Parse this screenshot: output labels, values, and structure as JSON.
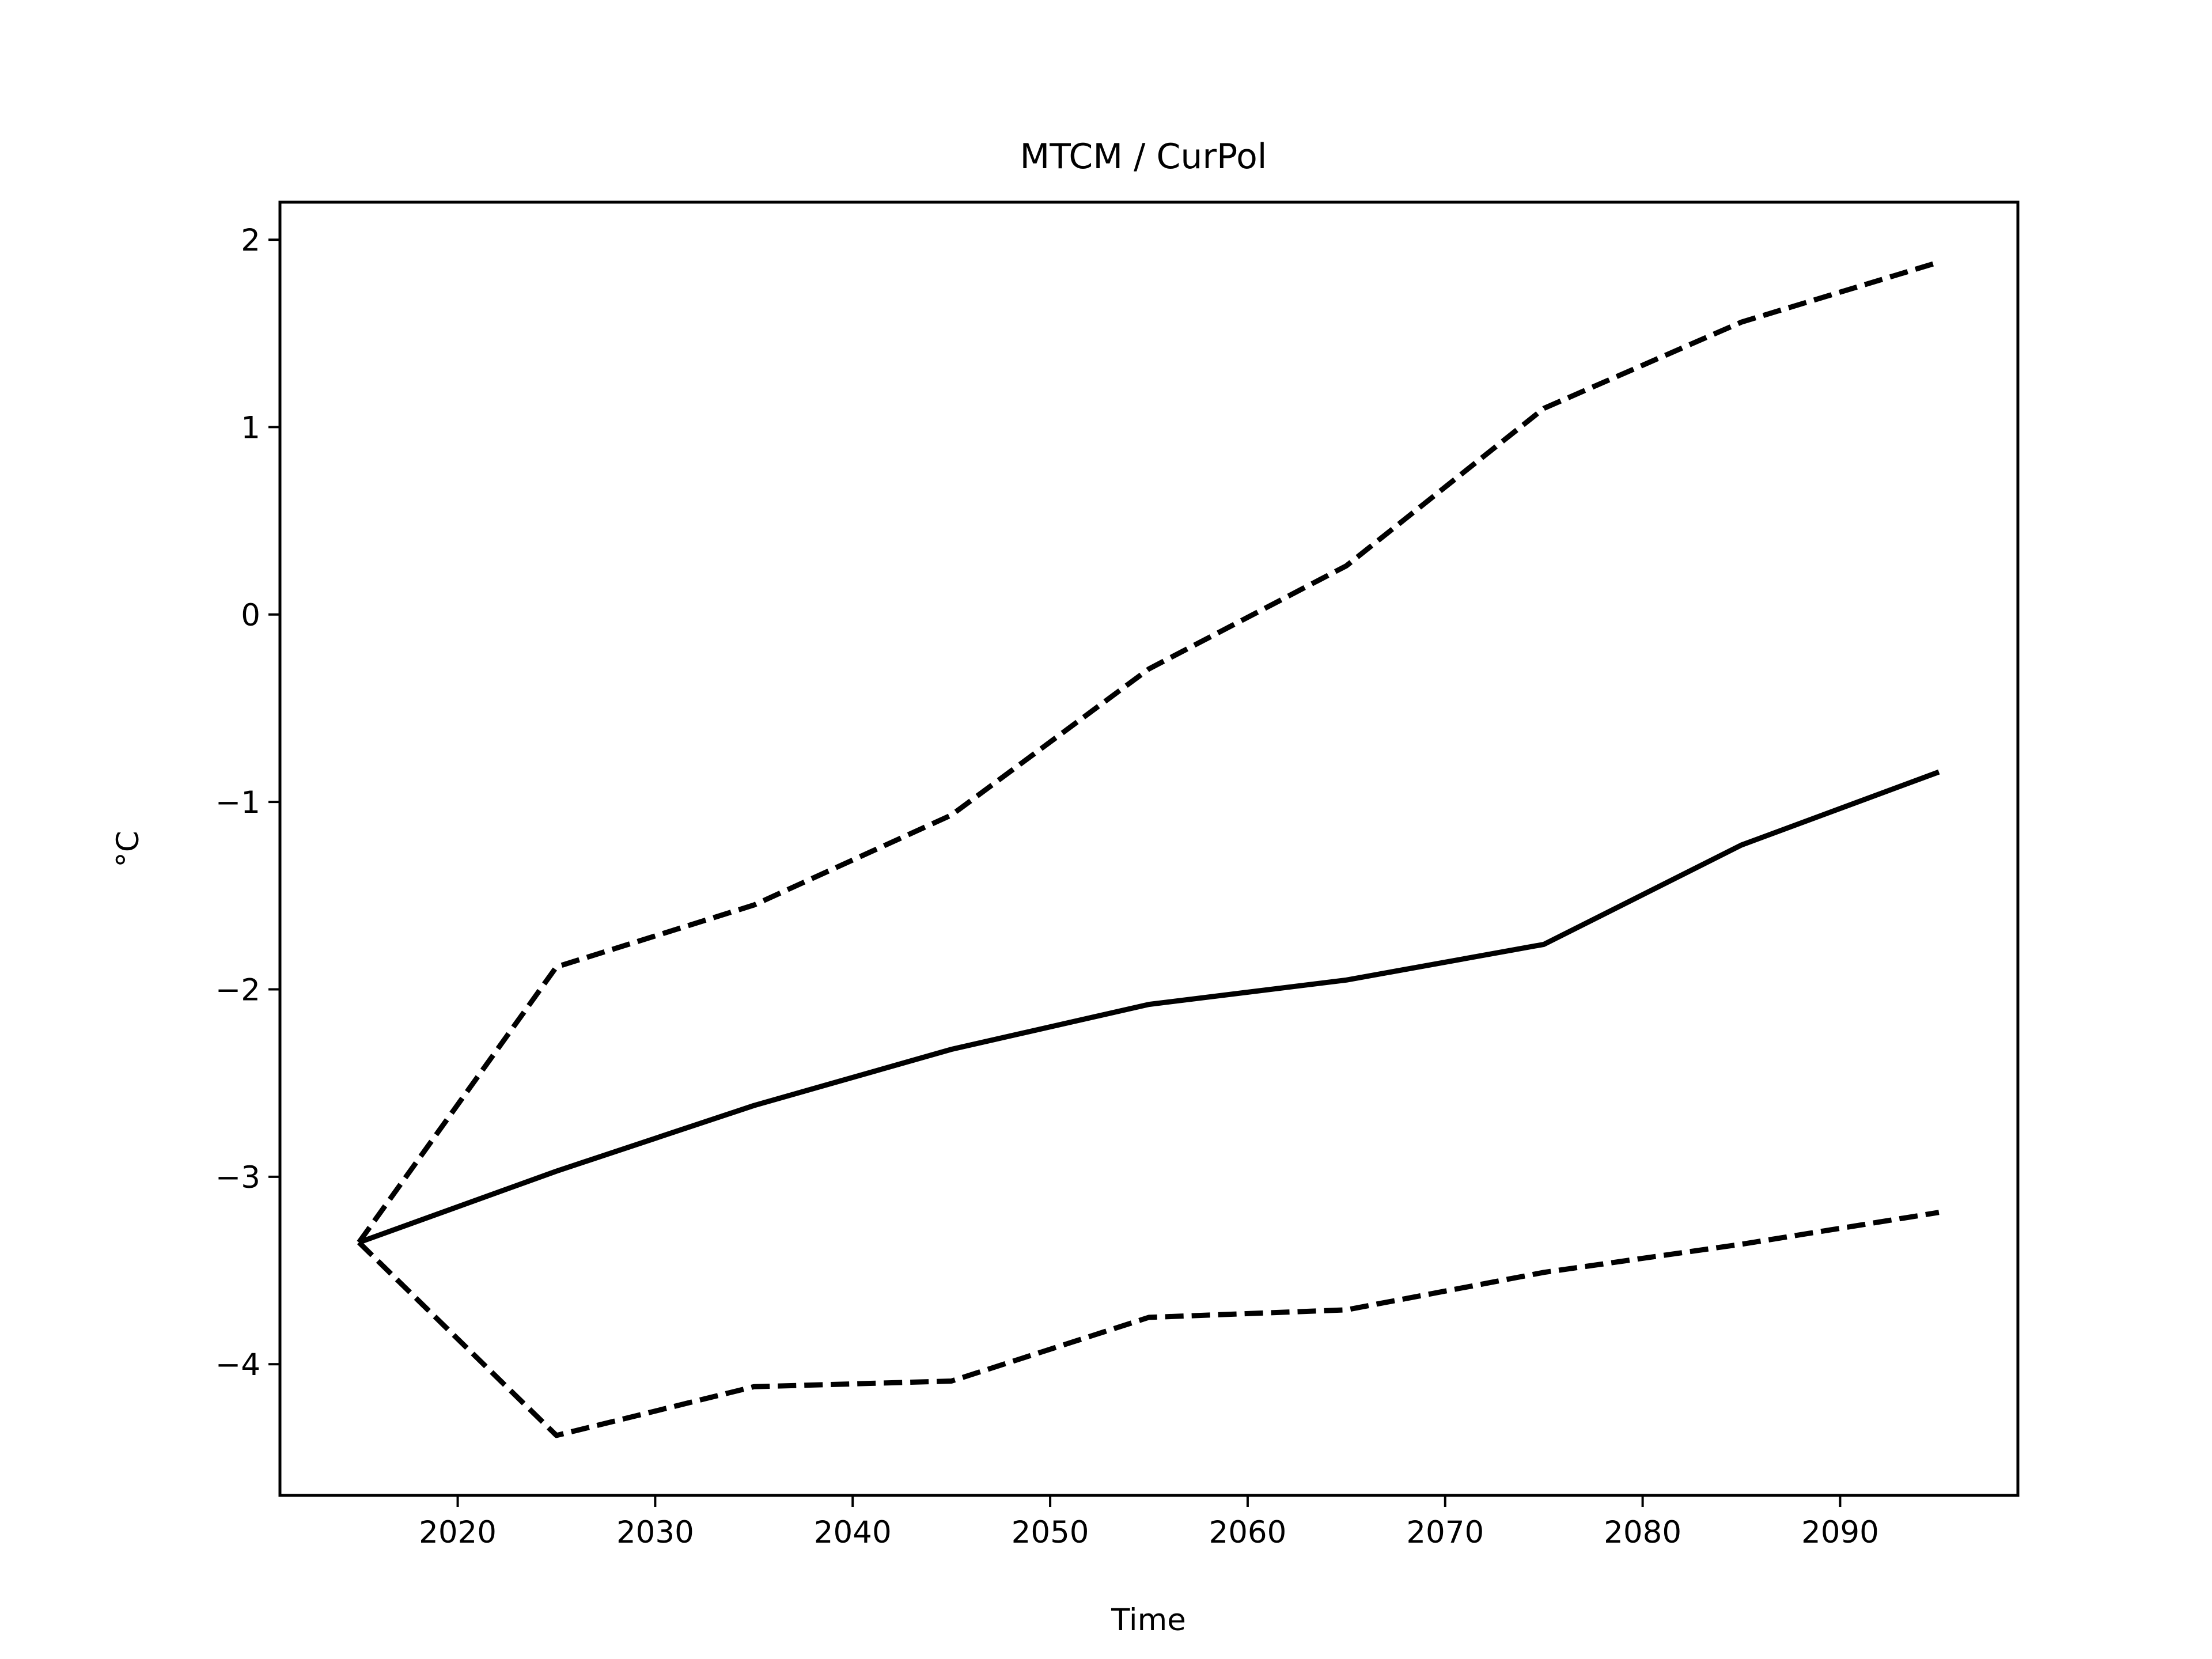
{
  "chart_data": {
    "type": "line",
    "title": "MTCM / CurPol",
    "xlabel": "Time",
    "ylabel": "°C",
    "xlim": [
      2011,
      2099
    ],
    "ylim": [
      -4.7,
      2.2
    ],
    "xticks": [
      2020,
      2030,
      2040,
      2050,
      2060,
      2070,
      2080,
      2090
    ],
    "xtick_labels": [
      "2020",
      "2030",
      "2040",
      "2050",
      "2060",
      "2070",
      "2080",
      "2090"
    ],
    "yticks": [
      2,
      1,
      0,
      -1,
      -2,
      -3,
      -4
    ],
    "ytick_labels": [
      "2",
      "1",
      "0",
      "−1",
      "−2",
      "−3",
      "−4"
    ],
    "grid": false,
    "legend": "none",
    "line_color": "#000000",
    "x": [
      2015,
      2025,
      2035,
      2045,
      2055,
      2065,
      2075,
      2085,
      2095
    ],
    "series": [
      {
        "style": "dashed",
        "values": [
          -3.35,
          -1.88,
          -1.55,
          -1.07,
          -0.29,
          0.26,
          1.1,
          1.56,
          1.88
        ]
      },
      {
        "style": "solid",
        "values": [
          -3.35,
          -2.97,
          -2.62,
          -2.32,
          -2.08,
          -1.95,
          -1.76,
          -1.23,
          -0.84
        ]
      },
      {
        "style": "dashed",
        "values": [
          -3.35,
          -4.38,
          -4.12,
          -4.09,
          -3.75,
          -3.71,
          -3.51,
          -3.36,
          -3.19
        ]
      }
    ]
  }
}
